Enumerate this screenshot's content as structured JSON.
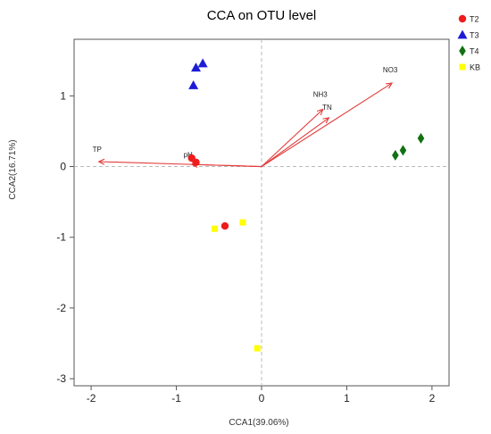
{
  "chart_data": {
    "type": "scatter",
    "title": "CCA on OTU level",
    "xlabel": "CCA1(39.06%)",
    "ylabel": "CCA2(16.71%)",
    "xlim": [
      -2.2,
      2.2
    ],
    "ylim": [
      -3.1,
      1.8
    ],
    "xticks": [
      -2,
      -1,
      0,
      1,
      2
    ],
    "yticks": [
      1,
      0,
      -1,
      -2,
      -3
    ],
    "xtick_labels": [
      "-2",
      "-1",
      "0",
      "1",
      "2"
    ],
    "ytick_labels": [
      "1",
      "0",
      "-1",
      "-2",
      "-3"
    ],
    "reference_lines": {
      "x": 0,
      "y": 0,
      "style": "dashed"
    },
    "legend_position": "top-right, outside plot",
    "series": [
      {
        "name": "T2",
        "marker": "circle",
        "color": "#ee1c1c",
        "points": [
          [
            -0.82,
            0.12
          ],
          [
            -0.77,
            0.06
          ],
          [
            -0.43,
            -0.84
          ]
        ]
      },
      {
        "name": "T3",
        "marker": "triangle",
        "color": "#1c1cd6",
        "points": [
          [
            -0.77,
            1.4
          ],
          [
            -0.69,
            1.46
          ],
          [
            -0.8,
            1.15
          ]
        ]
      },
      {
        "name": "T4",
        "marker": "diamond",
        "color": "#127112",
        "points": [
          [
            1.57,
            0.16
          ],
          [
            1.66,
            0.23
          ],
          [
            1.87,
            0.4
          ]
        ]
      },
      {
        "name": "KB",
        "marker": "square",
        "color": "#ffff00",
        "points": [
          [
            -0.55,
            -0.88
          ],
          [
            -0.22,
            -0.79
          ],
          [
            -0.05,
            -2.57
          ]
        ]
      }
    ],
    "vectors": [
      {
        "label": "TP",
        "x": -1.91,
        "y": 0.07
      },
      {
        "label": "pH",
        "x": -0.82,
        "y": 0.03
      },
      {
        "label": "NH3",
        "x": 0.72,
        "y": 0.81
      },
      {
        "label": "TN",
        "x": 0.79,
        "y": 0.69
      },
      {
        "label": "NO3",
        "x": 1.53,
        "y": 1.18
      }
    ],
    "vector_color": "#e33b3b"
  }
}
